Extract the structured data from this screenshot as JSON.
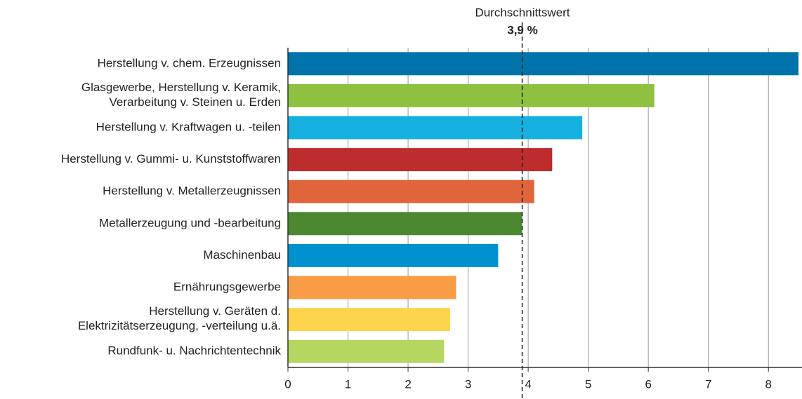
{
  "chart_data": {
    "type": "bar",
    "orientation": "horizontal",
    "categories": [
      "Herstellung v. chem. Erzeugnissen",
      "Glasgewerbe, Herstellung v. Keramik,\nVerarbeitung v. Steinen u. Erden",
      "Herstellung v. Kraftwagen u. -teilen",
      "Herstellung v. Gummi- u. Kunststoffwaren",
      "Herstellung v. Metallerzeugnissen",
      "Metallerzeugung und -bearbeitung",
      "Maschinenbau",
      "Ernährungsgewerbe",
      "Herstellung v. Geräten d.\nElektrizitätserzeugung, -verteilung u.ä.",
      "Rundfunk- u. Nachrichtentechnik"
    ],
    "values": [
      8.5,
      6.1,
      4.9,
      4.4,
      4.1,
      3.9,
      3.5,
      2.8,
      2.7,
      2.6
    ],
    "colors": [
      "#0073aa",
      "#8dc13f",
      "#16b0e0",
      "#bd2d2e",
      "#e0653a",
      "#4b8830",
      "#0092cf",
      "#f89c45",
      "#fdd44b",
      "#b6d662"
    ],
    "xlim": [
      0,
      8.5
    ],
    "xticks": [
      0,
      1,
      2,
      3,
      4,
      5,
      6,
      7,
      8
    ],
    "grid": true,
    "average_line": {
      "label": "Durchschnittswert",
      "value": 3.9,
      "value_label": "3,9 %"
    }
  }
}
